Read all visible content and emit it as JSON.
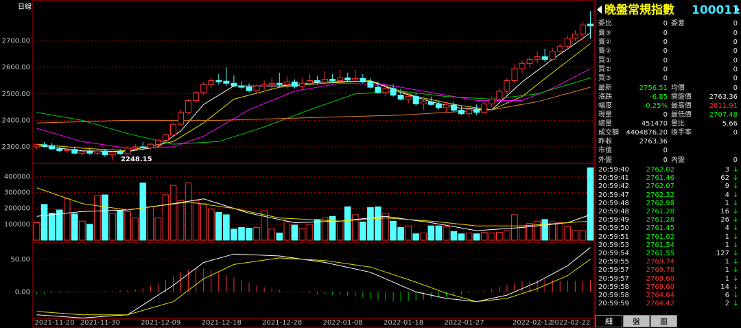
{
  "chart_data": [
    {
      "type": "candlestick",
      "title": "日線",
      "categories": [
        "2021-11-20",
        null,
        null,
        null,
        null,
        null,
        "2021-11-30",
        null,
        null,
        null,
        null,
        null,
        null,
        null,
        "2021-12-09",
        null,
        null,
        null,
        null,
        null,
        null,
        null,
        "2021-12-18",
        null,
        null,
        null,
        null,
        null,
        null,
        null,
        "2021-12-28",
        null,
        null,
        null,
        null,
        null,
        null,
        null,
        "2022-01-08",
        null,
        null,
        null,
        null,
        null,
        null,
        null,
        "2022-01-18",
        null,
        null,
        null,
        null,
        null,
        null,
        null,
        "2022-01-27",
        null,
        null,
        null,
        null,
        null,
        null,
        null,
        null,
        "2022-02-12",
        null,
        null,
        null,
        null,
        "2022-02-22",
        null,
        null,
        null,
        null,
        null
      ],
      "open": [
        2300,
        2308,
        2302,
        2292,
        2286,
        2290,
        2276,
        2282,
        2276,
        2284,
        2270,
        2280,
        2274,
        2295,
        2300,
        2296,
        2310,
        2325,
        2345,
        2385,
        2430,
        2475,
        2505,
        2535,
        2550,
        2548,
        2540,
        2530,
        2525,
        2512,
        2530,
        2535,
        2540,
        2535,
        2545,
        2528,
        2540,
        2550,
        2545,
        2555,
        2550,
        2560,
        2552,
        2558,
        2545,
        2525,
        2505,
        2520,
        2495,
        2480,
        2490,
        2462,
        2470,
        2460,
        2448,
        2458,
        2438,
        2425,
        2440,
        2430,
        2462,
        2480,
        2510,
        2550,
        2595,
        2615,
        2630,
        2640,
        2630,
        2660,
        2680,
        2710,
        2725,
        2763.36
      ],
      "high": [
        2312,
        2318,
        2315,
        2300,
        2298,
        2300,
        2288,
        2292,
        2290,
        2292,
        2285,
        2292,
        2300,
        2310,
        2318,
        2315,
        2330,
        2350,
        2390,
        2440,
        2480,
        2510,
        2545,
        2560,
        2575,
        2600,
        2570,
        2548,
        2540,
        2535,
        2550,
        2560,
        2580,
        2565,
        2555,
        2560,
        2575,
        2568,
        2585,
        2575,
        2590,
        2580,
        2590,
        2575,
        2560,
        2545,
        2530,
        2535,
        2520,
        2500,
        2505,
        2480,
        2490,
        2475,
        2470,
        2470,
        2455,
        2450,
        2460,
        2470,
        2490,
        2520,
        2560,
        2610,
        2625,
        2640,
        2660,
        2670,
        2672,
        2690,
        2720,
        2740,
        2770,
        2811.91
      ],
      "low": [
        2290,
        2296,
        2288,
        2280,
        2278,
        2272,
        2268,
        2270,
        2265,
        2262,
        2248.15,
        2270,
        2268,
        2285,
        2292,
        2290,
        2300,
        2318,
        2340,
        2380,
        2425,
        2465,
        2495,
        2520,
        2535,
        2530,
        2525,
        2520,
        2505,
        2505,
        2515,
        2520,
        2525,
        2520,
        2520,
        2515,
        2530,
        2535,
        2535,
        2540,
        2540,
        2545,
        2545,
        2540,
        2520,
        2500,
        2490,
        2490,
        2475,
        2465,
        2455,
        2440,
        2455,
        2440,
        2430,
        2430,
        2420,
        2412,
        2420,
        2425,
        2450,
        2470,
        2500,
        2540,
        2580,
        2600,
        2615,
        2620,
        2625,
        2650,
        2670,
        2700,
        2715,
        2707.48
      ],
      "close": [
        2308,
        2302,
        2292,
        2286,
        2290,
        2276,
        2282,
        2276,
        2284,
        2270,
        2280,
        2274,
        2295,
        2300,
        2296,
        2310,
        2325,
        2345,
        2385,
        2430,
        2475,
        2505,
        2535,
        2550,
        2545,
        2540,
        2530,
        2525,
        2512,
        2530,
        2535,
        2540,
        2535,
        2545,
        2528,
        2540,
        2550,
        2545,
        2555,
        2550,
        2560,
        2552,
        2558,
        2545,
        2525,
        2505,
        2520,
        2495,
        2480,
        2490,
        2462,
        2470,
        2460,
        2448,
        2458,
        2438,
        2425,
        2440,
        2430,
        2462,
        2480,
        2510,
        2550,
        2595,
        2615,
        2630,
        2640,
        2630,
        2660,
        2680,
        2710,
        2725,
        2760,
        2756.51
      ],
      "up_color": "#ff3232",
      "down_color": "#54ffff",
      "lines": [
        {
          "color": "#ffffff",
          "x": [
            0,
            6,
            12,
            16,
            19,
            22,
            26,
            32,
            38,
            44,
            48,
            52,
            56,
            60,
            64,
            68,
            73
          ],
          "values": [
            2305,
            2285,
            2282,
            2300,
            2360,
            2460,
            2530,
            2530,
            2545,
            2548,
            2505,
            2470,
            2445,
            2440,
            2545,
            2630,
            2730
          ]
        },
        {
          "color": "#e0e000",
          "x": [
            0,
            6,
            12,
            18,
            22,
            26,
            32,
            38,
            44,
            50,
            56,
            60,
            64,
            68,
            73
          ],
          "values": [
            2310,
            2295,
            2285,
            2320,
            2390,
            2480,
            2525,
            2540,
            2550,
            2490,
            2455,
            2440,
            2490,
            2580,
            2690
          ]
        },
        {
          "color": "#ff00ff",
          "x": [
            0,
            6,
            12,
            18,
            22,
            28,
            34,
            40,
            46,
            52,
            58,
            64,
            68,
            73
          ],
          "values": [
            2370,
            2320,
            2295,
            2300,
            2340,
            2440,
            2510,
            2540,
            2535,
            2505,
            2475,
            2475,
            2520,
            2595
          ]
        },
        {
          "color": "#00d000",
          "x": [
            0,
            6,
            12,
            18,
            24,
            30,
            36,
            42,
            48,
            54,
            60,
            66,
            73
          ],
          "values": [
            2430,
            2400,
            2350,
            2310,
            2320,
            2375,
            2440,
            2500,
            2510,
            2490,
            2480,
            2500,
            2560
          ]
        },
        {
          "color": "#e08020",
          "x": [
            0,
            12,
            24,
            36,
            48,
            60,
            66,
            73
          ],
          "values": [
            2390,
            2400,
            2400,
            2410,
            2420,
            2440,
            2470,
            2525
          ]
        }
      ],
      "ylim": [
        2243,
        2849
      ],
      "yticks": [
        {
          "value": 2300,
          "label": "2300.00"
        },
        {
          "value": 2400,
          "label": "2400.00"
        },
        {
          "value": 2500,
          "label": "2500.00"
        },
        {
          "value": 2600,
          "label": "2600.00"
        },
        {
          "value": 2700,
          "label": "2700.00"
        }
      ],
      "grid": true
    },
    {
      "type": "volume",
      "values": [
        110000,
        225000,
        170000,
        190000,
        260000,
        165000,
        120000,
        100000,
        280000,
        285000,
        170000,
        185000,
        180000,
        140000,
        360000,
        210000,
        140000,
        285000,
        345000,
        250000,
        360000,
        250000,
        230000,
        195000,
        175000,
        160000,
        70000,
        80000,
        75000,
        80000,
        185000,
        70000,
        45000,
        115000,
        95000,
        75000,
        100000,
        130000,
        140000,
        150000,
        120000,
        210000,
        160000,
        115000,
        205000,
        210000,
        170000,
        120000,
        80000,
        90000,
        40000,
        45000,
        90000,
        90000,
        85000,
        55000,
        40000,
        45000,
        40000,
        50000,
        45000,
        50000,
        60000,
        160000,
        90000,
        105000,
        120000,
        130000,
        115000,
        110000,
        85000,
        60000,
        60000,
        455000
      ],
      "lines": [
        {
          "color": "#ffffff",
          "x": [
            0,
            6,
            12,
            18,
            22,
            28,
            34,
            40,
            46,
            52,
            58,
            64,
            70,
            73
          ],
          "values": [
            150000,
            180000,
            190000,
            230000,
            260000,
            170000,
            110000,
            120000,
            150000,
            110000,
            60000,
            80000,
            110000,
            160000
          ]
        },
        {
          "color": "#e0e000",
          "x": [
            0,
            6,
            12,
            20,
            26,
            32,
            40,
            46,
            52,
            58,
            64,
            70,
            73
          ],
          "values": [
            330000,
            230000,
            190000,
            240000,
            200000,
            140000,
            120000,
            140000,
            120000,
            90000,
            90000,
            110000,
            120000
          ]
        }
      ],
      "ylim": [
        0,
        475000
      ],
      "yticks": [
        100000,
        200000,
        300000,
        400000
      ],
      "grid": true
    },
    {
      "type": "macd",
      "values": [
        -3,
        -3,
        -2,
        -2,
        -2,
        -1,
        -1,
        0,
        1,
        1,
        1,
        2,
        3,
        4,
        6,
        9,
        13,
        18,
        24,
        30,
        34,
        37,
        36,
        33,
        30,
        26,
        22,
        18,
        14,
        10,
        7,
        5,
        3,
        1,
        0,
        -1,
        -2,
        -3,
        -4,
        -5,
        -5,
        -6,
        -7,
        -9,
        -11,
        -13,
        -14,
        -15,
        -15,
        -14,
        -13,
        -12,
        -11,
        -9,
        -8,
        -6,
        -4,
        -2,
        0,
        2,
        5,
        8,
        11,
        14,
        16,
        17,
        18,
        19,
        18,
        17,
        17,
        17,
        16,
        18
      ],
      "up_color": "#ff3232",
      "down_color": "#00c000",
      "lines": [
        {
          "color": "#ffffff",
          "x": [
            0,
            6,
            12,
            18,
            22,
            26,
            32,
            38,
            44,
            50,
            54,
            58,
            62,
            66,
            70,
            73
          ],
          "values": [
            -35,
            -40,
            -35,
            10,
            45,
            58,
            55,
            45,
            30,
            0,
            -10,
            -15,
            -5,
            15,
            40,
            68
          ]
        },
        {
          "color": "#e0e000",
          "x": [
            0,
            6,
            12,
            18,
            22,
            26,
            32,
            38,
            44,
            50,
            54,
            58,
            62,
            66,
            70,
            73
          ],
          "values": [
            -30,
            -35,
            -35,
            -15,
            20,
            42,
            52,
            48,
            38,
            15,
            -2,
            -15,
            -10,
            5,
            25,
            50
          ]
        }
      ],
      "ylim": [
        -38.5,
        72.9
      ],
      "yticks": [
        {
          "value": 0,
          "label": "0.00"
        },
        {
          "value": 50,
          "label": "50.00"
        }
      ],
      "grid": true
    }
  ],
  "quote_panel": {
    "title": "晚盤常規指數",
    "code": "100011",
    "order_ratio": [
      {
        "label": "委比",
        "value": 0
      },
      {
        "label": "委差",
        "value": 0
      }
    ],
    "asks": [
      {
        "label": "賣③",
        "price": 0,
        "volume": 0
      },
      {
        "label": "賣②",
        "price": 0,
        "volume": 0
      },
      {
        "label": "賣①",
        "price": 0,
        "volume": 0
      }
    ],
    "bids": [
      {
        "label": "買①",
        "price": 0,
        "volume": 0
      },
      {
        "label": "買②",
        "price": 0,
        "volume": 0
      },
      {
        "label": "買③",
        "price": 0,
        "volume": 0
      }
    ],
    "stats": [
      [
        {
          "label": "最新",
          "value": 2756.51,
          "color": "#00ff00"
        },
        {
          "label": "均價",
          "value": 0
        }
      ],
      [
        {
          "label": "漲跌",
          "value": -6.85,
          "color": "#00ff00"
        },
        {
          "label": "開盤價",
          "value": 2763.36
        }
      ],
      [
        {
          "label": "幅度",
          "value": "-0.25%",
          "color": "#00ff00"
        },
        {
          "label": "最高價",
          "value": 2811.91,
          "color": "#ff3232"
        }
      ],
      [
        {
          "label": "現量",
          "value": 0
        },
        {
          "label": "最低價",
          "value": 2707.48,
          "color": "#00ff00"
        }
      ],
      [
        {
          "label": "總量",
          "value": 451470
        },
        {
          "label": "量比",
          "value": 5.66
        }
      ],
      [
        {
          "label": "成交額",
          "value": "4404876.20"
        },
        {
          "label": "換手率",
          "value": 0
        }
      ],
      [
        {
          "label": "昨收",
          "value": 2763.36
        }
      ],
      [
        {
          "label": "市值",
          "value": 0
        }
      ]
    ],
    "trade_side": [
      {
        "label": "外盤",
        "value": 0
      },
      {
        "label": "內盤",
        "value": 0
      }
    ],
    "ticks": [
      {
        "time": "20:59:40",
        "price": "2762.02",
        "volume": 3,
        "direction": "↓"
      },
      {
        "time": "20:59:41",
        "price": "2761.46",
        "volume": 62,
        "direction": "↓"
      },
      {
        "time": "20:59:42",
        "price": "2762.07",
        "volume": 9,
        "direction": "↓"
      },
      {
        "time": "20:59:47",
        "price": "2762.32",
        "volume": 4,
        "direction": "↓"
      },
      {
        "time": "20:59:48",
        "price": "2762.98",
        "volume": 1,
        "direction": "↓"
      },
      {
        "time": "20:59:48",
        "price": "2761.28",
        "volume": 16,
        "direction": "↓"
      },
      {
        "time": "20:59:49",
        "price": "2761.28",
        "volume": 26,
        "direction": "↓"
      },
      {
        "time": "20:59:50",
        "price": "2761.45",
        "volume": 4,
        "direction": "↓"
      },
      {
        "time": "20:59:51",
        "price": "2761.02",
        "volume": 1,
        "direction": "↓"
      },
      {
        "time": "20:59:53",
        "price": "2761.54",
        "volume": 1,
        "direction": "↓"
      },
      {
        "time": "20:59:54",
        "price": "2761.55",
        "volume": 127,
        "direction": "↓"
      },
      {
        "time": "20:59:55",
        "price": "2769.74",
        "volume": 1,
        "direction": "↓"
      },
      {
        "time": "20:59:57",
        "price": "2769.78",
        "volume": 1,
        "direction": "↓"
      },
      {
        "time": "20:59:57",
        "price": "2769.60",
        "volume": 1,
        "direction": "↓"
      },
      {
        "time": "20:59:58",
        "price": "2769.60",
        "volume": 14,
        "direction": "↓"
      },
      {
        "time": "20:59:58",
        "price": "2764.64",
        "volume": 6,
        "direction": "↓"
      },
      {
        "time": "20:59:59",
        "price": "2764.42",
        "volume": 2,
        "direction": "↓"
      }
    ],
    "tabs": [
      "細",
      "盤",
      "圖"
    ]
  }
}
